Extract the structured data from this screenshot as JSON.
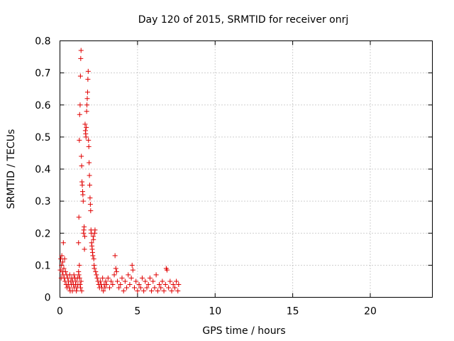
{
  "chart_data": {
    "type": "scatter",
    "title": "Day 120 of 2015, SRMTID for receiver onrj",
    "xlabel": "GPS time / hours",
    "ylabel": "SRMTID / TECUs",
    "xlim": [
      0,
      24
    ],
    "ylim": [
      0,
      0.8
    ],
    "xticks": [
      0,
      5,
      10,
      15,
      20
    ],
    "yticks": [
      0,
      0.1,
      0.2,
      0.3,
      0.4,
      0.5,
      0.6,
      0.7,
      0.8
    ],
    "grid": true,
    "marker": "+",
    "color": "#e00000",
    "series": [
      {
        "name": "onrj",
        "points": [
          [
            0.02,
            0.085
          ],
          [
            0.05,
            0.12
          ],
          [
            0.08,
            0.06
          ],
          [
            0.1,
            0.1
          ],
          [
            0.12,
            0.13
          ],
          [
            0.15,
            0.08
          ],
          [
            0.18,
            0.11
          ],
          [
            0.2,
            0.07
          ],
          [
            0.22,
            0.17
          ],
          [
            0.25,
            0.09
          ],
          [
            0.28,
            0.06
          ],
          [
            0.3,
            0.12
          ],
          [
            0.33,
            0.05
          ],
          [
            0.36,
            0.08
          ],
          [
            0.4,
            0.04
          ],
          [
            0.43,
            0.07
          ],
          [
            0.46,
            0.03
          ],
          [
            0.5,
            0.06
          ],
          [
            0.53,
            0.04
          ],
          [
            0.56,
            0.05
          ],
          [
            0.6,
            0.03
          ],
          [
            0.63,
            0.07
          ],
          [
            0.66,
            0.02
          ],
          [
            0.7,
            0.05
          ],
          [
            0.73,
            0.04
          ],
          [
            0.76,
            0.06
          ],
          [
            0.8,
            0.02
          ],
          [
            0.83,
            0.05
          ],
          [
            0.86,
            0.04
          ],
          [
            0.9,
            0.07
          ],
          [
            0.93,
            0.03
          ],
          [
            0.96,
            0.06
          ],
          [
            1.0,
            0.04
          ],
          [
            1.03,
            0.05
          ],
          [
            1.06,
            0.02
          ],
          [
            1.1,
            0.03
          ],
          [
            1.13,
            0.06
          ],
          [
            1.16,
            0.04
          ],
          [
            1.2,
            0.08
          ],
          [
            1.22,
            0.07
          ],
          [
            1.25,
            0.1
          ],
          [
            1.27,
            0.06
          ],
          [
            1.3,
            0.04
          ],
          [
            1.33,
            0.03
          ],
          [
            1.36,
            0.05
          ],
          [
            1.4,
            0.02
          ],
          [
            1.2,
            0.17
          ],
          [
            1.22,
            0.25
          ],
          [
            1.25,
            0.49
          ],
          [
            1.27,
            0.57
          ],
          [
            1.3,
            0.6
          ],
          [
            1.32,
            0.69
          ],
          [
            1.34,
            0.745
          ],
          [
            1.36,
            0.77
          ],
          [
            1.38,
            0.44
          ],
          [
            1.4,
            0.41
          ],
          [
            1.42,
            0.36
          ],
          [
            1.44,
            0.35
          ],
          [
            1.46,
            0.33
          ],
          [
            1.48,
            0.32
          ],
          [
            1.5,
            0.3
          ],
          [
            1.52,
            0.2
          ],
          [
            1.54,
            0.21
          ],
          [
            1.56,
            0.22
          ],
          [
            1.58,
            0.15
          ],
          [
            1.6,
            0.19
          ],
          [
            1.62,
            0.54
          ],
          [
            1.64,
            0.52
          ],
          [
            1.66,
            0.51
          ],
          [
            1.68,
            0.5
          ],
          [
            1.7,
            0.53
          ],
          [
            1.72,
            0.58
          ],
          [
            1.74,
            0.6
          ],
          [
            1.76,
            0.62
          ],
          [
            1.78,
            0.64
          ],
          [
            1.8,
            0.68
          ],
          [
            1.82,
            0.705
          ],
          [
            1.84,
            0.49
          ],
          [
            1.86,
            0.47
          ],
          [
            1.88,
            0.42
          ],
          [
            1.9,
            0.38
          ],
          [
            1.92,
            0.35
          ],
          [
            1.94,
            0.31
          ],
          [
            1.96,
            0.29
          ],
          [
            1.98,
            0.27
          ],
          [
            2.0,
            0.21
          ],
          [
            2.02,
            0.2
          ],
          [
            2.04,
            0.17
          ],
          [
            2.06,
            0.16
          ],
          [
            2.08,
            0.15
          ],
          [
            2.1,
            0.14
          ],
          [
            2.12,
            0.13
          ],
          [
            2.14,
            0.19
          ],
          [
            2.16,
            0.18
          ],
          [
            2.18,
            0.12
          ],
          [
            2.2,
            0.1
          ],
          [
            2.22,
            0.09
          ],
          [
            2.24,
            0.2
          ],
          [
            2.26,
            0.21
          ],
          [
            2.3,
            0.08
          ],
          [
            2.35,
            0.07
          ],
          [
            2.4,
            0.06
          ],
          [
            2.45,
            0.05
          ],
          [
            2.5,
            0.04
          ],
          [
            2.55,
            0.03
          ],
          [
            2.6,
            0.05
          ],
          [
            2.65,
            0.04
          ],
          [
            2.7,
            0.03
          ],
          [
            2.75,
            0.06
          ],
          [
            2.8,
            0.02
          ],
          [
            2.85,
            0.04
          ],
          [
            2.9,
            0.03
          ],
          [
            2.95,
            0.05
          ],
          [
            3.0,
            0.04
          ],
          [
            3.1,
            0.06
          ],
          [
            3.2,
            0.03
          ],
          [
            3.3,
            0.05
          ],
          [
            3.4,
            0.04
          ],
          [
            3.5,
            0.07
          ],
          [
            3.55,
            0.13
          ],
          [
            3.6,
            0.09
          ],
          [
            3.65,
            0.08
          ],
          [
            3.7,
            0.05
          ],
          [
            3.8,
            0.03
          ],
          [
            3.9,
            0.04
          ],
          [
            4.0,
            0.06
          ],
          [
            4.1,
            0.02
          ],
          [
            4.2,
            0.05
          ],
          [
            4.3,
            0.03
          ],
          [
            4.4,
            0.07
          ],
          [
            4.5,
            0.04
          ],
          [
            4.6,
            0.06
          ],
          [
            4.65,
            0.1
          ],
          [
            4.7,
            0.085
          ],
          [
            4.8,
            0.03
          ],
          [
            4.9,
            0.05
          ],
          [
            5.0,
            0.02
          ],
          [
            5.1,
            0.04
          ],
          [
            5.2,
            0.03
          ],
          [
            5.3,
            0.06
          ],
          [
            5.4,
            0.02
          ],
          [
            5.5,
            0.05
          ],
          [
            5.6,
            0.03
          ],
          [
            5.7,
            0.04
          ],
          [
            5.8,
            0.06
          ],
          [
            5.9,
            0.02
          ],
          [
            6.0,
            0.05
          ],
          [
            6.1,
            0.03
          ],
          [
            6.2,
            0.07
          ],
          [
            6.3,
            0.02
          ],
          [
            6.4,
            0.04
          ],
          [
            6.5,
            0.03
          ],
          [
            6.6,
            0.05
          ],
          [
            6.7,
            0.02
          ],
          [
            6.8,
            0.04
          ],
          [
            6.85,
            0.09
          ],
          [
            6.9,
            0.085
          ],
          [
            7.0,
            0.03
          ],
          [
            7.1,
            0.05
          ],
          [
            7.2,
            0.02
          ],
          [
            7.3,
            0.04
          ],
          [
            7.4,
            0.03
          ],
          [
            7.5,
            0.05
          ],
          [
            7.6,
            0.02
          ],
          [
            7.65,
            0.04
          ]
        ]
      }
    ]
  }
}
